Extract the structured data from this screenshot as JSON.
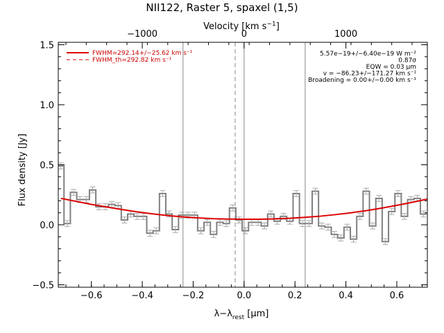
{
  "chart_data": {
    "type": "line",
    "title": "NII122, Raster 5, spaxel (1,5)",
    "xlabel": "λ−λrest [μm]",
    "xlabel_parts": {
      "lead": "λ−λ",
      "sub": "rest",
      "tail": " [μm]"
    },
    "ylabel": "Flux density [Jy]",
    "top_xlabel": "Velocity [km s⁻¹]",
    "top_xlabel_parts": {
      "lead": "Velocity [km s",
      "sup": "−1",
      "tail": "]"
    },
    "xlim": [
      -0.73,
      0.72
    ],
    "ylim": [
      -0.52,
      1.52
    ],
    "grid": false,
    "bottom_ticks": [
      {
        "value": -0.6,
        "label": "−0.6"
      },
      {
        "value": -0.4,
        "label": "−0.4"
      },
      {
        "value": -0.2,
        "label": "−0.2"
      },
      {
        "value": 0.0,
        "label": "0.0"
      },
      {
        "value": 0.2,
        "label": "0.2"
      },
      {
        "value": 0.4,
        "label": "0.4"
      },
      {
        "value": 0.6,
        "label": "0.6"
      }
    ],
    "left_ticks": [
      {
        "value": -0.5,
        "label": "−0.5"
      },
      {
        "value": 0.0,
        "label": "0.0"
      },
      {
        "value": 0.5,
        "label": "0.5"
      },
      {
        "value": 1.0,
        "label": "1.0"
      },
      {
        "value": 1.5,
        "label": "1.5"
      }
    ],
    "top_ticks": [
      {
        "wavelength": -0.4,
        "label": "−1000"
      },
      {
        "wavelength": 0.0,
        "label": "0"
      },
      {
        "wavelength": 0.4,
        "label": "1000"
      }
    ],
    "vertical_lines": [
      {
        "x": -0.24,
        "style": "solid"
      },
      {
        "x": -0.035,
        "style": "dashed"
      },
      {
        "x": 0.0,
        "style": "solid"
      },
      {
        "x": 0.24,
        "style": "solid"
      }
    ],
    "series": [
      {
        "type": "step",
        "color": "#808080",
        "x": [
          -0.72,
          -0.695,
          -0.67,
          -0.645,
          -0.62,
          -0.595,
          -0.57,
          -0.545,
          -0.52,
          -0.495,
          -0.47,
          -0.445,
          -0.42,
          -0.395,
          -0.37,
          -0.345,
          -0.32,
          -0.295,
          -0.27,
          -0.245,
          -0.22,
          -0.195,
          -0.17,
          -0.145,
          -0.12,
          -0.095,
          -0.07,
          -0.045,
          -0.02,
          0.005,
          0.03,
          0.055,
          0.08,
          0.105,
          0.13,
          0.155,
          0.18,
          0.205,
          0.23,
          0.255,
          0.28,
          0.305,
          0.33,
          0.355,
          0.38,
          0.405,
          0.43,
          0.455,
          0.48,
          0.505,
          0.53,
          0.555,
          0.58,
          0.605,
          0.63,
          0.655,
          0.68,
          0.705
        ],
        "y": [
          0.49,
          0.01,
          0.27,
          0.21,
          0.21,
          0.29,
          0.15,
          0.15,
          0.17,
          0.16,
          0.04,
          0.09,
          0.07,
          0.07,
          -0.07,
          -0.05,
          0.26,
          0.09,
          -0.04,
          0.08,
          0.08,
          0.08,
          -0.05,
          0.02,
          -0.08,
          0.02,
          0.01,
          0.14,
          0.04,
          -0.05,
          0.02,
          0.02,
          -0.01,
          0.09,
          0.03,
          0.07,
          0.03,
          0.26,
          0.01,
          0.01,
          0.28,
          -0.01,
          -0.02,
          -0.08,
          -0.11,
          -0.02,
          -0.12,
          0.07,
          0.28,
          -0.01,
          0.22,
          -0.14,
          0.11,
          0.26,
          0.07,
          0.21,
          0.22,
          0.09
        ],
        "errors": 0.025
      },
      {
        "type": "line",
        "name": "FWHM=292.14+/−25.62 km s⁻¹",
        "color": "#dd0000",
        "style": "solid",
        "x": [
          -0.72,
          -0.66,
          -0.6,
          -0.54,
          -0.48,
          -0.42,
          -0.36,
          -0.3,
          -0.24,
          -0.18,
          -0.12,
          -0.06,
          0.0,
          0.06,
          0.12,
          0.18,
          0.24,
          0.3,
          0.36,
          0.42,
          0.48,
          0.54,
          0.6,
          0.66,
          0.72
        ],
        "y": [
          0.22,
          0.195,
          0.17,
          0.148,
          0.127,
          0.108,
          0.091,
          0.077,
          0.066,
          0.057,
          0.051,
          0.048,
          0.046,
          0.046,
          0.049,
          0.054,
          0.062,
          0.072,
          0.085,
          0.1,
          0.118,
          0.139,
          0.162,
          0.187,
          0.214
        ]
      },
      {
        "type": "line",
        "name": "FWHM_th=292.82 km s⁻¹",
        "color": "#dd0000",
        "style": "dashed",
        "x": [],
        "y": []
      }
    ],
    "legend": {
      "placement": "top-left",
      "entries": [
        {
          "label": "FWHM=292.14+/−25.62 km s⁻¹",
          "color": "#dd0000",
          "style": "solid"
        },
        {
          "label": "FWHM_th=292.82 km s⁻¹",
          "color": "#dd0000",
          "style": "dashed"
        }
      ]
    },
    "annotations": {
      "placement": "top-right",
      "lines": [
        "5.57e−19+/−6.40e−19 W m⁻²",
        "0.87σ",
        "EQW = 0.03 μm",
        "v = −86.23+/−171.27 km s⁻¹",
        "Broadening = 0.00+/−0.00 km s⁻¹"
      ]
    }
  }
}
